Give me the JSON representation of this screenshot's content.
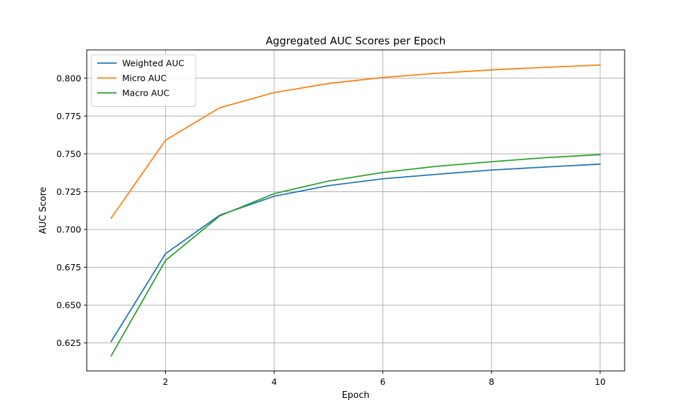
{
  "chart_data": {
    "type": "line",
    "title": "Aggregated AUC Scores per Epoch",
    "xlabel": "Epoch",
    "ylabel": "AUC Score",
    "xlim": [
      0.55,
      10.45
    ],
    "ylim": [
      0.6065,
      0.8187
    ],
    "xticks": [
      2,
      4,
      6,
      8,
      10
    ],
    "yticks": [
      0.625,
      0.65,
      0.675,
      0.7,
      0.725,
      0.75,
      0.775,
      0.8
    ],
    "xtick_labels": [
      "2",
      "4",
      "6",
      "8",
      "10"
    ],
    "ytick_labels": [
      "0.625",
      "0.650",
      "0.675",
      "0.700",
      "0.725",
      "0.750",
      "0.775",
      "0.800"
    ],
    "grid": true,
    "legend_position": "top-left",
    "x": [
      1,
      2,
      3,
      4,
      5,
      6,
      7,
      8,
      9,
      10
    ],
    "series": [
      {
        "name": "Weighted AUC",
        "color": "#1f77b4",
        "values": [
          0.626,
          0.684,
          0.7095,
          0.722,
          0.729,
          0.7335,
          0.7365,
          0.7393,
          0.7413,
          0.7432
        ]
      },
      {
        "name": "Micro AUC",
        "color": "#ff7f0e",
        "values": [
          0.7075,
          0.759,
          0.7805,
          0.7905,
          0.7965,
          0.8005,
          0.8033,
          0.8055,
          0.8072,
          0.8087
        ]
      },
      {
        "name": "Macro AUC",
        "color": "#2ca02c",
        "values": [
          0.6165,
          0.6795,
          0.709,
          0.7237,
          0.732,
          0.7377,
          0.7418,
          0.7448,
          0.7475,
          0.7495
        ]
      }
    ]
  }
}
